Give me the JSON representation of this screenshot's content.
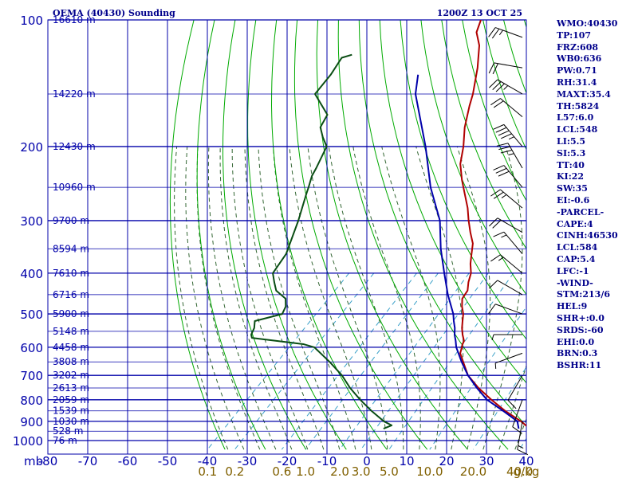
{
  "chart_data": {
    "type": "skew-t sounding",
    "title": "OEMA (40430) Sounding",
    "datetime": "1200Z 13 OCT 25",
    "pressure_unit_label": "mb",
    "pressure_ticks": [
      100,
      200,
      300,
      400,
      500,
      600,
      700,
      800,
      900,
      1000
    ],
    "pressure_range": [
      100,
      1000
    ],
    "temperature_range_at_bottom": [
      -80,
      40
    ],
    "temperature_ticks": [
      -80,
      -70,
      -60,
      -50,
      -40,
      -30,
      -20,
      -10,
      0,
      10,
      20,
      30,
      40
    ],
    "mixing_ratio_labels": [
      {
        "label": "0.1",
        "value": 0.1
      },
      {
        "label": "0.2",
        "value": 0.2
      },
      {
        "label": "0.6",
        "value": 0.6
      },
      {
        "label": "1.0",
        "value": 1.0
      },
      {
        "label": "2.0",
        "value": 2.0
      },
      {
        "label": "3.0",
        "value": 3.0
      },
      {
        "label": "5.0",
        "value": 5.0
      },
      {
        "label": "10.0",
        "value": 10.0
      },
      {
        "label": "20.0",
        "value": 20.0
      },
      {
        "label": "40.0",
        "value": 40.0
      },
      {
        "label": "g/kg",
        "value": null
      }
    ],
    "height_labels": [
      {
        "p": 100,
        "text": "16610 m"
      },
      {
        "p": 150,
        "text": "14220 m"
      },
      {
        "p": 200,
        "text": "12430 m"
      },
      {
        "p": 250,
        "text": "10960 m"
      },
      {
        "p": 300,
        "text": "9700 m"
      },
      {
        "p": 350,
        "text": "8594 m"
      },
      {
        "p": 400,
        "text": "7610 m"
      },
      {
        "p": 450,
        "text": "6716 m"
      },
      {
        "p": 500,
        "text": "5900 m"
      },
      {
        "p": 550,
        "text": "5148 m"
      },
      {
        "p": 600,
        "text": "4458 m"
      },
      {
        "p": 650,
        "text": "3808 m"
      },
      {
        "p": 700,
        "text": "3202 m"
      },
      {
        "p": 750,
        "text": "2613 m"
      },
      {
        "p": 800,
        "text": "2059 m"
      },
      {
        "p": 850,
        "text": "1539 m"
      },
      {
        "p": 900,
        "text": "1030 m"
      },
      {
        "p": 950,
        "text": "528 m"
      },
      {
        "p": 1000,
        "text": "76 m"
      }
    ],
    "series": [
      {
        "name": "temperature",
        "color": "#b00000",
        "points": [
          [
            937,
            34.5
          ],
          [
            900,
            30.4
          ],
          [
            850,
            23.8
          ],
          [
            800,
            17.6
          ],
          [
            750,
            11.4
          ],
          [
            700,
            5.6
          ],
          [
            650,
            1.0
          ],
          [
            620,
            -1.9
          ],
          [
            600,
            -3.0
          ],
          [
            590,
            -3.6
          ],
          [
            580,
            -4.0
          ],
          [
            560,
            -6.0
          ],
          [
            540,
            -7.8
          ],
          [
            520,
            -9.4
          ],
          [
            500,
            -11.0
          ],
          [
            480,
            -13.2
          ],
          [
            460,
            -15.1
          ],
          [
            440,
            -15.8
          ],
          [
            420,
            -17.7
          ],
          [
            400,
            -19.3
          ],
          [
            380,
            -21.8
          ],
          [
            360,
            -24.0
          ],
          [
            340,
            -26.3
          ],
          [
            320,
            -29.7
          ],
          [
            300,
            -33.1
          ],
          [
            280,
            -36.5
          ],
          [
            260,
            -40.6
          ],
          [
            240,
            -45.0
          ],
          [
            220,
            -49.4
          ],
          [
            200,
            -53.0
          ],
          [
            180,
            -57.5
          ],
          [
            160,
            -61.7
          ],
          [
            150,
            -63.8
          ],
          [
            130,
            -69.2
          ],
          [
            115,
            -74.4
          ],
          [
            107,
            -78.4
          ],
          [
            100,
            -80.4
          ]
        ]
      },
      {
        "name": "dewpoint",
        "color": "#0a4d14",
        "points": [
          [
            937,
            -2.2
          ],
          [
            920,
            -1.0
          ],
          [
            900,
            -4.0
          ],
          [
            850,
            -9.7
          ],
          [
            800,
            -15.3
          ],
          [
            750,
            -20.8
          ],
          [
            700,
            -26.0
          ],
          [
            650,
            -32.5
          ],
          [
            600,
            -40.0
          ],
          [
            590,
            -43.5
          ],
          [
            570,
            -58.0
          ],
          [
            560,
            -59.0
          ],
          [
            540,
            -59.9
          ],
          [
            520,
            -61.5
          ],
          [
            500,
            -56.4
          ],
          [
            480,
            -57.4
          ],
          [
            460,
            -59.4
          ],
          [
            440,
            -63.8
          ],
          [
            420,
            -66.4
          ],
          [
            400,
            -69.0
          ],
          [
            360,
            -70.5
          ],
          [
            300,
            -75.8
          ],
          [
            260,
            -80.4
          ],
          [
            250,
            -81.6
          ],
          [
            235,
            -83.6
          ],
          [
            225,
            -84.5
          ],
          [
            200,
            -87.3
          ],
          [
            190,
            -90.6
          ],
          [
            180,
            -93.7
          ],
          [
            168,
            -95.1
          ],
          [
            150,
            -103.4
          ],
          [
            135,
            -104.3
          ],
          [
            123,
            -105.8
          ],
          [
            121,
            -104.0
          ]
        ]
      },
      {
        "name": "parcel",
        "color": "#0000aa",
        "points": [
          [
            937,
            31.7
          ],
          [
            900,
            29.5
          ],
          [
            850,
            23.3
          ],
          [
            800,
            16.5
          ],
          [
            750,
            11.0
          ],
          [
            700,
            5.6
          ],
          [
            650,
            0.6
          ],
          [
            600,
            -4.4
          ],
          [
            580,
            -6.1
          ],
          [
            560,
            -8.0
          ],
          [
            540,
            -9.6
          ],
          [
            520,
            -11.6
          ],
          [
            500,
            -13.5
          ],
          [
            450,
            -19.7
          ],
          [
            400,
            -26.0
          ],
          [
            350,
            -33.0
          ],
          [
            300,
            -40.3
          ],
          [
            250,
            -51.0
          ],
          [
            200,
            -62.5
          ],
          [
            150,
            -78.2
          ],
          [
            135,
            -82.4
          ]
        ]
      }
    ],
    "wind_barbs": [
      {
        "p": 110,
        "dir": 290,
        "kt": 25
      },
      {
        "p": 130,
        "dir": 280,
        "kt": 20
      },
      {
        "p": 150,
        "dir": 300,
        "kt": 35
      },
      {
        "p": 170,
        "dir": 310,
        "kt": 20
      },
      {
        "p": 200,
        "dir": 320,
        "kt": 45
      },
      {
        "p": 225,
        "dir": 330,
        "kt": 35
      },
      {
        "p": 250,
        "dir": 320,
        "kt": 30
      },
      {
        "p": 280,
        "dir": 310,
        "kt": 25
      },
      {
        "p": 320,
        "dir": 300,
        "kt": 20
      },
      {
        "p": 360,
        "dir": 320,
        "kt": 15
      },
      {
        "p": 400,
        "dir": 310,
        "kt": 15
      },
      {
        "p": 450,
        "dir": 300,
        "kt": 10
      },
      {
        "p": 500,
        "dir": 290,
        "kt": 10
      },
      {
        "p": 560,
        "dir": 270,
        "kt": 5
      },
      {
        "p": 620,
        "dir": 250,
        "kt": 5
      },
      {
        "p": 700,
        "dir": 210,
        "kt": 10
      },
      {
        "p": 800,
        "dir": 200,
        "kt": 10
      },
      {
        "p": 900,
        "dir": 190,
        "kt": 15
      }
    ]
  },
  "stats": [
    "WMO:40430",
    "TP:107",
    "FRZ:608",
    "WB0:636",
    "PW:0.71",
    "RH:31.4",
    "MAXT:35.4",
    "TH:5824",
    "L57:6.0",
    "LCL:548",
    "LI:5.5",
    "SI:5.3",
    "TT:40",
    "KI:22",
    "SW:35",
    "EI:-0.6",
    "-PARCEL-",
    "CAPE:4",
    "CINH:46530",
    "LCL:584",
    "CAP:5.4",
    "LFC:-1",
    "-WIND-",
    "STM:213/6",
    "HEL:9",
    "SHR+:0.0",
    "SRDS:-60",
    "EHI:0.0",
    "BRN:0.3",
    "BSHR:11"
  ],
  "colors": {
    "grid": "#0000aa",
    "dry_adiabat": "#00aa00",
    "moist_adiabat": "#336633",
    "mixing_ratio": "#3aa0c8",
    "axis_text": "#0000aa",
    "mixing_label": "#806000",
    "title": "#00008b"
  }
}
